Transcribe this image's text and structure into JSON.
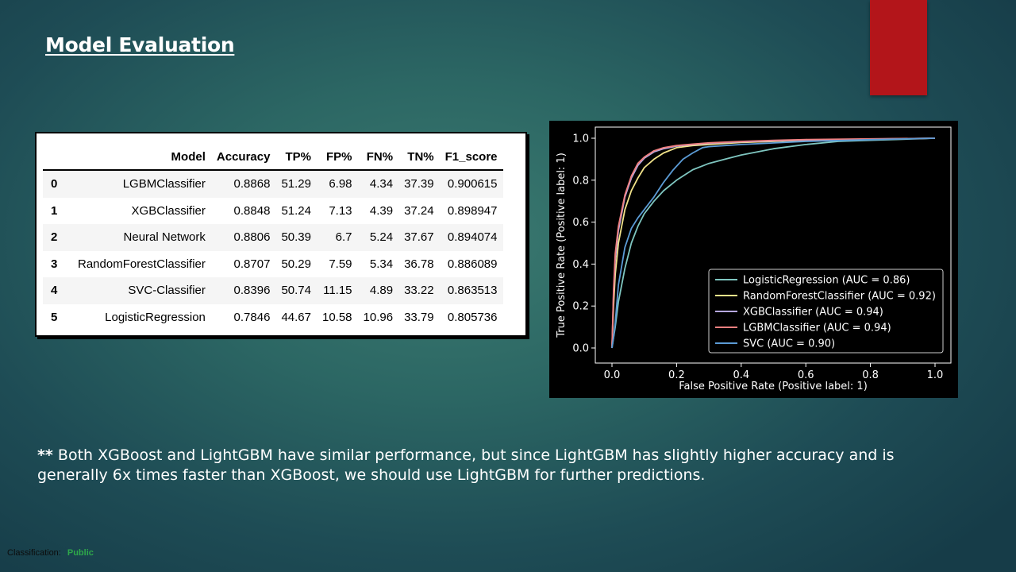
{
  "slide": {
    "title": "Model Evaluation",
    "note_prefix": "**",
    "note_text": "Both XGBoost and LightGBM have similar performance, but since LightGBM has slightly higher accuracy and is generally 6x times faster than XGBoost, we should use LightGBM for further predictions.",
    "classification_label": "Classification:",
    "classification_value": "Public"
  },
  "colors": {
    "accent_block": "#b3151a",
    "classification_public": "#2ea84a"
  },
  "table": {
    "headers": [
      "",
      "Model",
      "Accuracy",
      "TP%",
      "FP%",
      "FN%",
      "TN%",
      "F1_score"
    ],
    "rows": [
      [
        "0",
        "LGBMClassifier",
        "0.8868",
        "51.29",
        "6.98",
        "4.34",
        "37.39",
        "0.900615"
      ],
      [
        "1",
        "XGBClassifier",
        "0.8848",
        "51.24",
        "7.13",
        "4.39",
        "37.24",
        "0.898947"
      ],
      [
        "2",
        "Neural Network",
        "0.8806",
        "50.39",
        "6.7",
        "5.24",
        "37.67",
        "0.894074"
      ],
      [
        "3",
        "RandomForestClassifier",
        "0.8707",
        "50.29",
        "7.59",
        "5.34",
        "36.78",
        "0.886089"
      ],
      [
        "4",
        "SVC-Classifier",
        "0.8396",
        "50.74",
        "11.15",
        "4.89",
        "33.22",
        "0.863513"
      ],
      [
        "5",
        "LogisticRegression",
        "0.7846",
        "44.67",
        "10.58",
        "10.96",
        "33.79",
        "0.805736"
      ]
    ]
  },
  "chart_data": {
    "type": "line",
    "xlabel": "False Positive Rate (Positive label: 1)",
    "ylabel": "True Positive Rate (Positive label: 1)",
    "xlim": [
      0.0,
      1.0
    ],
    "ylim": [
      0.0,
      1.0
    ],
    "xticks": [
      "0.0",
      "0.2",
      "0.4",
      "0.6",
      "0.8",
      "1.0"
    ],
    "yticks": [
      "0.0",
      "0.2",
      "0.4",
      "0.6",
      "0.8",
      "1.0"
    ],
    "grid": false,
    "legend_position": "lower-right",
    "background": "#000000",
    "series": [
      {
        "name": "LogisticRegression (AUC = 0.86)",
        "color": "#7fc6c0",
        "x": [
          0.0,
          0.01,
          0.02,
          0.04,
          0.06,
          0.08,
          0.1,
          0.13,
          0.16,
          0.2,
          0.25,
          0.3,
          0.35,
          0.4,
          0.5,
          0.6,
          0.7,
          0.8,
          0.9,
          1.0
        ],
        "y": [
          0.0,
          0.1,
          0.22,
          0.38,
          0.5,
          0.58,
          0.64,
          0.7,
          0.75,
          0.8,
          0.85,
          0.88,
          0.9,
          0.92,
          0.95,
          0.97,
          0.985,
          0.99,
          0.995,
          1.0
        ]
      },
      {
        "name": "RandomForestClassifier (AUC = 0.92)",
        "color": "#f2e38a",
        "x": [
          0.0,
          0.005,
          0.01,
          0.02,
          0.04,
          0.06,
          0.08,
          0.1,
          0.13,
          0.16,
          0.2,
          0.25,
          0.3,
          0.4,
          0.5,
          0.6,
          0.8,
          1.0
        ],
        "y": [
          0.0,
          0.2,
          0.35,
          0.5,
          0.66,
          0.75,
          0.81,
          0.86,
          0.9,
          0.93,
          0.955,
          0.965,
          0.97,
          0.98,
          0.985,
          0.99,
          0.995,
          1.0
        ]
      },
      {
        "name": "XGBClassifier (AUC = 0.94)",
        "color": "#b6a8df",
        "x": [
          0.0,
          0.005,
          0.01,
          0.02,
          0.04,
          0.06,
          0.08,
          0.1,
          0.13,
          0.16,
          0.2,
          0.25,
          0.3,
          0.4,
          0.5,
          0.6,
          0.8,
          1.0
        ],
        "y": [
          0.0,
          0.26,
          0.42,
          0.56,
          0.72,
          0.81,
          0.87,
          0.905,
          0.935,
          0.95,
          0.962,
          0.97,
          0.976,
          0.983,
          0.988,
          0.992,
          0.996,
          1.0
        ]
      },
      {
        "name": "LGBMClassifier (AUC = 0.94)",
        "color": "#f08080",
        "x": [
          0.0,
          0.005,
          0.01,
          0.02,
          0.04,
          0.06,
          0.08,
          0.1,
          0.13,
          0.16,
          0.2,
          0.25,
          0.3,
          0.4,
          0.5,
          0.6,
          0.8,
          1.0
        ],
        "y": [
          0.0,
          0.28,
          0.45,
          0.58,
          0.73,
          0.82,
          0.88,
          0.91,
          0.94,
          0.955,
          0.965,
          0.972,
          0.978,
          0.985,
          0.99,
          0.994,
          0.997,
          1.0
        ]
      },
      {
        "name": "SVC (AUC = 0.90)",
        "color": "#5b9bd5",
        "x": [
          0.0,
          0.005,
          0.01,
          0.02,
          0.04,
          0.06,
          0.08,
          0.1,
          0.13,
          0.16,
          0.19,
          0.22,
          0.25,
          0.28,
          0.3,
          0.4,
          0.6,
          0.8,
          1.0
        ],
        "y": [
          0.0,
          0.05,
          0.12,
          0.3,
          0.48,
          0.57,
          0.62,
          0.66,
          0.72,
          0.79,
          0.85,
          0.9,
          0.93,
          0.955,
          0.96,
          0.97,
          0.985,
          0.993,
          1.0
        ]
      }
    ]
  }
}
